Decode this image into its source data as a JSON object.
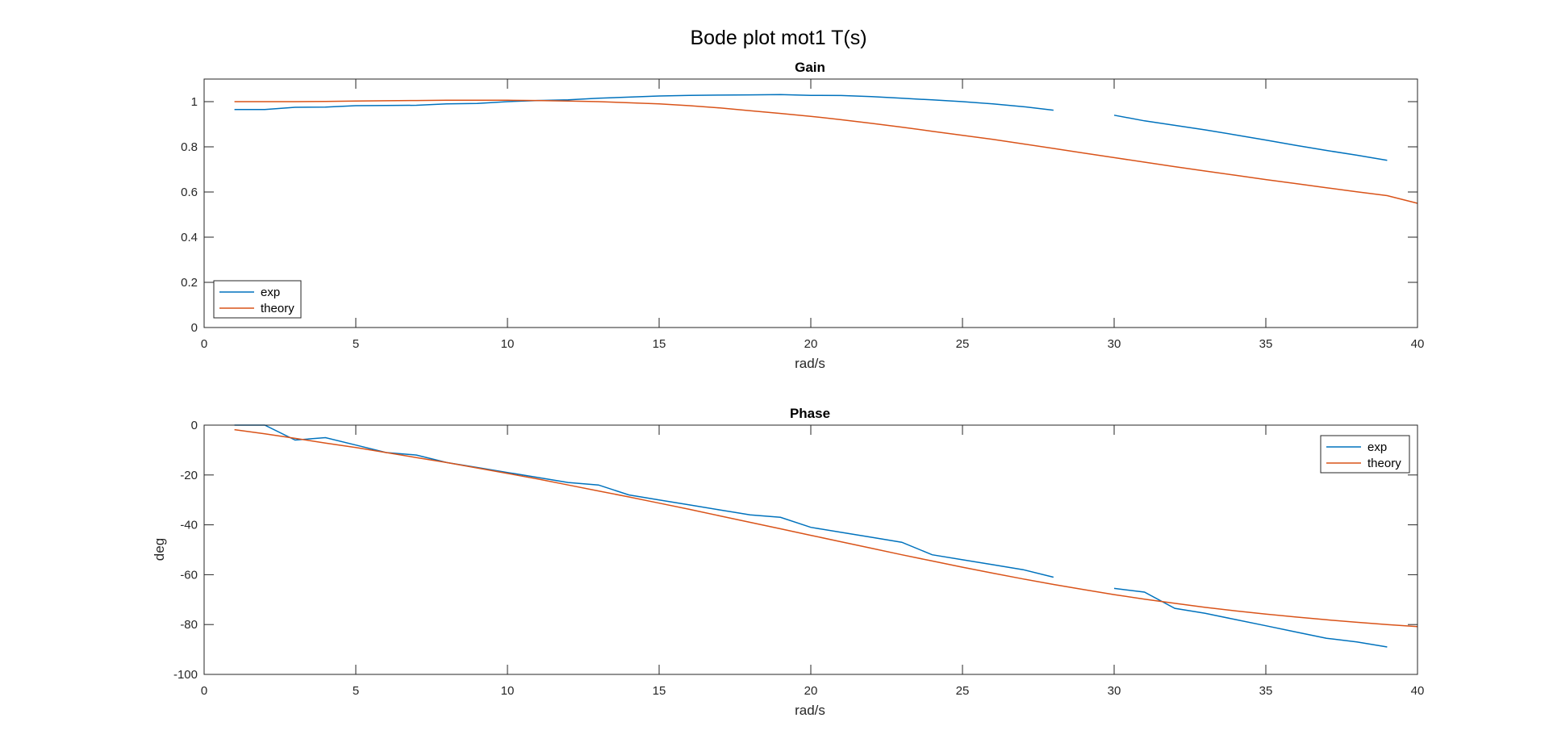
{
  "figure": {
    "title": "Bode plot mot1 T(s)"
  },
  "colors": {
    "exp": "#0072BD",
    "theory": "#D95319",
    "axis": "#262626"
  },
  "chart_data": [
    {
      "type": "line",
      "title": "Gain",
      "xlabel": "rad/s",
      "ylabel": "",
      "xlim": [
        0,
        40
      ],
      "ylim": [
        0,
        1.1
      ],
      "xticks": [
        0,
        5,
        10,
        15,
        20,
        25,
        30,
        35,
        40
      ],
      "yticks": [
        0,
        0.2,
        0.4,
        0.6,
        0.8,
        1
      ],
      "legend": {
        "location": "bottom-left",
        "entries": [
          "exp",
          "theory"
        ]
      },
      "series": [
        {
          "name": "exp",
          "segments": [
            {
              "x": [
                1,
                2,
                3,
                4,
                5,
                6,
                7,
                8,
                9,
                10,
                11,
                12,
                13,
                14,
                15,
                16,
                17,
                18,
                19,
                20,
                21,
                22,
                23,
                24,
                25,
                26,
                27,
                28
              ],
              "y": [
                0.965,
                0.965,
                0.975,
                0.976,
                0.982,
                0.983,
                0.984,
                0.99,
                0.992,
                1.0,
                1.005,
                1.008,
                1.015,
                1.02,
                1.025,
                1.028,
                1.029,
                1.03,
                1.031,
                1.028,
                1.027,
                1.022,
                1.015,
                1.008,
                1.0,
                0.99,
                0.978,
                0.962
              ]
            },
            {
              "x": [
                30,
                31,
                32,
                33,
                34,
                35,
                36,
                37,
                38,
                39
              ],
              "y": [
                0.94,
                0.915,
                0.895,
                0.875,
                0.853,
                0.83,
                0.806,
                0.784,
                0.763,
                0.74
              ]
            }
          ]
        },
        {
          "name": "theory",
          "segments": [
            {
              "x": [
                1,
                2,
                3,
                4,
                5,
                6,
                7,
                8,
                9,
                10,
                11,
                12,
                13,
                14,
                15,
                16,
                17,
                18,
                19,
                20,
                21,
                22,
                23,
                24,
                25,
                26,
                27,
                28,
                29,
                30,
                31,
                32,
                33,
                34,
                35,
                36,
                37,
                38,
                39,
                40
              ],
              "y": [
                1.0,
                1.0,
                1.0,
                1.001,
                1.003,
                1.004,
                1.005,
                1.006,
                1.006,
                1.006,
                1.005,
                1.003,
                1.0,
                0.995,
                0.99,
                0.982,
                0.972,
                0.96,
                0.948,
                0.935,
                0.92,
                0.904,
                0.887,
                0.869,
                0.851,
                0.833,
                0.813,
                0.793,
                0.772,
                0.752,
                0.732,
                0.712,
                0.693,
                0.674,
                0.655,
                0.637,
                0.619,
                0.601,
                0.584,
                0.55
              ]
            }
          ]
        }
      ]
    },
    {
      "type": "line",
      "title": "Phase",
      "xlabel": "rad/s",
      "ylabel": "deg",
      "xlim": [
        0,
        40
      ],
      "ylim": [
        -100,
        0
      ],
      "xticks": [
        0,
        5,
        10,
        15,
        20,
        25,
        30,
        35,
        40
      ],
      "yticks": [
        -100,
        -80,
        -60,
        -40,
        -20,
        0
      ],
      "legend": {
        "location": "top-right",
        "entries": [
          "exp",
          "theory"
        ]
      },
      "series": [
        {
          "name": "exp",
          "segments": [
            {
              "x": [
                1,
                2,
                3,
                4,
                5,
                6,
                7,
                8,
                9,
                10,
                11,
                12,
                13,
                14,
                15,
                16,
                17,
                18,
                19,
                20,
                21,
                22,
                23,
                24,
                25,
                26,
                27,
                28
              ],
              "y": [
                0,
                0,
                -6,
                -5,
                -8,
                -11,
                -12,
                -15,
                -17,
                -19,
                -21,
                -23,
                -24,
                -28,
                -30,
                -32,
                -34,
                -36,
                -37,
                -41,
                -43,
                -45,
                -47,
                -52,
                -54,
                -56,
                -58,
                -61
              ]
            },
            {
              "x": [
                30,
                31,
                32,
                33,
                34,
                35,
                36,
                37,
                38,
                39
              ],
              "y": [
                -65.5,
                -67,
                -73.5,
                -75.5,
                -78,
                -80.5,
                -83,
                -85.5,
                -87,
                -89
              ]
            }
          ]
        },
        {
          "name": "theory",
          "segments": [
            {
              "x": [
                1,
                2,
                3,
                4,
                5,
                6,
                7,
                8,
                9,
                10,
                11,
                12,
                13,
                14,
                15,
                16,
                17,
                18,
                19,
                20,
                21,
                22,
                23,
                24,
                25,
                26,
                27,
                28,
                29,
                30,
                31,
                32,
                33,
                34,
                35,
                36,
                37,
                38,
                39,
                40
              ],
              "y": [
                -1.8,
                -3.5,
                -5.3,
                -7.2,
                -9.0,
                -11.0,
                -13.0,
                -15.0,
                -17.2,
                -19.4,
                -21.6,
                -24.0,
                -26.4,
                -28.8,
                -31.3,
                -33.8,
                -36.4,
                -39.0,
                -41.6,
                -44.2,
                -46.8,
                -49.4,
                -52.0,
                -54.5,
                -57.0,
                -59.4,
                -61.7,
                -63.9,
                -66.0,
                -68.0,
                -69.8,
                -71.5,
                -73.1,
                -74.5,
                -75.8,
                -77.0,
                -78.1,
                -79.1,
                -80.0,
                -80.8
              ]
            }
          ]
        }
      ]
    }
  ]
}
